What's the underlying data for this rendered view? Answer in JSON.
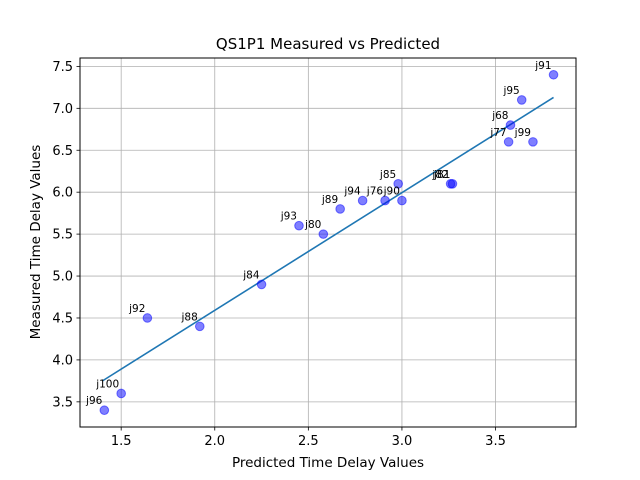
{
  "chart_data": {
    "type": "scatter",
    "title": "QS1P1 Measured vs Predicted",
    "xlabel": "Predicted Time Delay Values",
    "ylabel": "Measured Time Delay Values",
    "xlim": [
      1.28,
      3.93
    ],
    "ylim": [
      3.2,
      7.6
    ],
    "xticks": [
      1.5,
      2.0,
      2.5,
      3.0,
      3.5
    ],
    "yticks": [
      3.5,
      4.0,
      4.5,
      5.0,
      5.5,
      6.0,
      6.5,
      7.0,
      7.5
    ],
    "xtick_labels": [
      "1.5",
      "2.0",
      "2.5",
      "3.0",
      "3.5"
    ],
    "ytick_labels": [
      "3.5",
      "4.0",
      "4.5",
      "5.0",
      "5.5",
      "6.0",
      "6.5",
      "7.0",
      "7.5"
    ],
    "grid": true,
    "point_color": "#0000ff",
    "line_color": "#1f77b4",
    "points": [
      {
        "label": "j96",
        "x": 1.41,
        "y": 3.4
      },
      {
        "label": "j100",
        "x": 1.5,
        "y": 3.6
      },
      {
        "label": "j92",
        "x": 1.64,
        "y": 4.5
      },
      {
        "label": "j88",
        "x": 1.92,
        "y": 4.4
      },
      {
        "label": "j84",
        "x": 2.25,
        "y": 4.9
      },
      {
        "label": "j93",
        "x": 2.45,
        "y": 5.6
      },
      {
        "label": "j80",
        "x": 2.58,
        "y": 5.5
      },
      {
        "label": "j89",
        "x": 2.67,
        "y": 5.8
      },
      {
        "label": "j94",
        "x": 2.79,
        "y": 5.9
      },
      {
        "label": "j76",
        "x": 2.91,
        "y": 5.9
      },
      {
        "label": "j85",
        "x": 2.98,
        "y": 6.1
      },
      {
        "label": "j90",
        "x": 3.0,
        "y": 5.9
      },
      {
        "label": "j82",
        "x": 3.26,
        "y": 6.1
      },
      {
        "label": "j81",
        "x": 3.27,
        "y": 6.1
      },
      {
        "label": "j77",
        "x": 3.57,
        "y": 6.6
      },
      {
        "label": "j68",
        "x": 3.58,
        "y": 6.8
      },
      {
        "label": "j95",
        "x": 3.64,
        "y": 7.1
      },
      {
        "label": "j99",
        "x": 3.7,
        "y": 6.6
      },
      {
        "label": "j91",
        "x": 3.81,
        "y": 7.4
      }
    ],
    "fit_line": {
      "x": [
        1.4,
        3.81
      ],
      "y": [
        3.75,
        7.13
      ]
    }
  }
}
